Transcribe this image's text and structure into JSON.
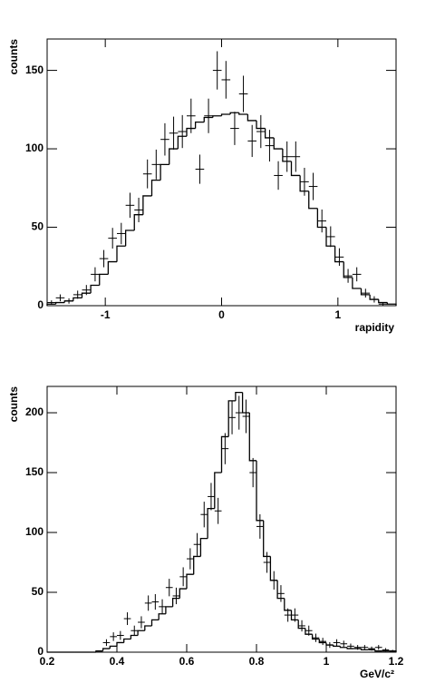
{
  "chart_data": [
    {
      "type": "histogram",
      "xlabel": "rapidity",
      "ylabel": "counts",
      "bins": [
        -1.5,
        -1.425,
        -1.35,
        -1.275,
        -1.2,
        -1.125,
        -1.05,
        -0.975,
        -0.9,
        -0.825,
        -0.75,
        -0.675,
        -0.6,
        -0.525,
        -0.45,
        -0.375,
        -0.3,
        -0.225,
        -0.15,
        -0.075,
        0,
        0.075,
        0.15,
        0.225,
        0.3,
        0.375,
        0.45,
        0.525,
        0.6,
        0.675,
        0.75,
        0.825,
        0.9,
        0.975,
        1.05,
        1.125,
        1.2,
        1.275,
        1.35,
        1.425,
        1.5
      ],
      "series": [
        {
          "style": "step",
          "color": "#000000",
          "values": [
            1,
            2,
            3,
            5,
            8,
            13,
            20,
            28,
            38,
            48,
            58,
            70,
            80,
            90,
            100,
            108,
            113,
            117,
            120,
            121,
            122,
            123,
            122,
            118,
            113,
            107,
            100,
            92,
            83,
            73,
            62,
            50,
            38,
            28,
            18,
            11,
            7,
            4,
            2,
            1
          ]
        },
        {
          "style": "points",
          "color": "#000000",
          "values": [
            2,
            5,
            3,
            7,
            10,
            20,
            30,
            43,
            46,
            64,
            61,
            84,
            90,
            106,
            110,
            111,
            121,
            87,
            121,
            150,
            144,
            113,
            135,
            105,
            111,
            102,
            83,
            95,
            95,
            79,
            76,
            54,
            44,
            31,
            19,
            20,
            8,
            4,
            1,
            0
          ],
          "errors": [
            1.4,
            2.2,
            1.7,
            2.6,
            3.2,
            4.5,
            5.5,
            6.6,
            6.8,
            8,
            7.8,
            9.2,
            9.5,
            10.3,
            10.5,
            10.5,
            11,
            9.3,
            11,
            12.2,
            12,
            10.6,
            11.6,
            10.2,
            10.5,
            10.1,
            9.1,
            9.7,
            9.7,
            8.9,
            8.7,
            7.3,
            6.6,
            5.6,
            4.4,
            4.5,
            2.8,
            2,
            1,
            0
          ]
        }
      ],
      "xlim": [
        -1.5,
        1.5
      ],
      "xticks": [
        -1,
        0,
        1
      ],
      "ylim": [
        0,
        170
      ],
      "yticks": [
        0,
        50,
        100,
        150
      ]
    },
    {
      "type": "histogram",
      "xlabel": "GeV/c²",
      "ylabel": "counts",
      "bins": [
        0.2,
        0.22,
        0.24,
        0.26,
        0.28,
        0.3,
        0.32,
        0.34,
        0.36,
        0.38,
        0.4,
        0.42,
        0.44,
        0.46,
        0.48,
        0.5,
        0.52,
        0.54,
        0.56,
        0.58,
        0.6,
        0.62,
        0.64,
        0.66,
        0.68,
        0.7,
        0.72,
        0.74,
        0.76,
        0.78,
        0.8,
        0.82,
        0.84,
        0.86,
        0.88,
        0.9,
        0.92,
        0.94,
        0.96,
        0.98,
        1,
        1.02,
        1.04,
        1.06,
        1.08,
        1.1,
        1.12,
        1.14,
        1.16,
        1.18,
        1.2
      ],
      "series": [
        {
          "style": "step",
          "color": "#000000",
          "values": [
            0,
            0,
            0,
            0,
            0,
            0,
            0,
            1,
            3,
            5,
            8,
            11,
            14,
            18,
            22,
            27,
            32,
            38,
            45,
            53,
            65,
            80,
            95,
            120,
            150,
            180,
            210,
            217,
            200,
            160,
            110,
            80,
            60,
            45,
            35,
            27,
            20,
            15,
            11,
            8,
            6,
            5,
            4,
            3,
            3,
            2,
            2,
            1,
            1,
            1
          ]
        },
        {
          "style": "points",
          "color": "#000000",
          "values": [
            0,
            0,
            0,
            0,
            0,
            0,
            0,
            0,
            8,
            13,
            14,
            28,
            18,
            25,
            41,
            42,
            38,
            54,
            47,
            63,
            78,
            90,
            115,
            130,
            118,
            170,
            196,
            200,
            197,
            150,
            105,
            75,
            60,
            49,
            31,
            31,
            22,
            18,
            12,
            9,
            6,
            8,
            7,
            5,
            4,
            4,
            3,
            4,
            2,
            1
          ],
          "errors": [
            0,
            0,
            0,
            0,
            0,
            0,
            0,
            0,
            2.8,
            3.6,
            3.7,
            5.3,
            4.2,
            5,
            6.4,
            6.5,
            6.2,
            7.3,
            6.9,
            7.9,
            8.8,
            9.5,
            10.7,
            11.4,
            10.9,
            13,
            14,
            14.1,
            14,
            12.2,
            10.2,
            8.7,
            7.7,
            7,
            5.6,
            5.6,
            4.7,
            4.2,
            3.5,
            3,
            2.4,
            2.8,
            2.6,
            2.2,
            2,
            2,
            1.7,
            2,
            1.4,
            1
          ]
        }
      ],
      "xlim": [
        0.2,
        1.2
      ],
      "xticks": [
        0.2,
        0.4,
        0.6,
        0.8,
        1,
        1.2
      ],
      "ylim": [
        0,
        222
      ],
      "yticks": [
        0,
        50,
        100,
        150,
        200
      ]
    }
  ]
}
